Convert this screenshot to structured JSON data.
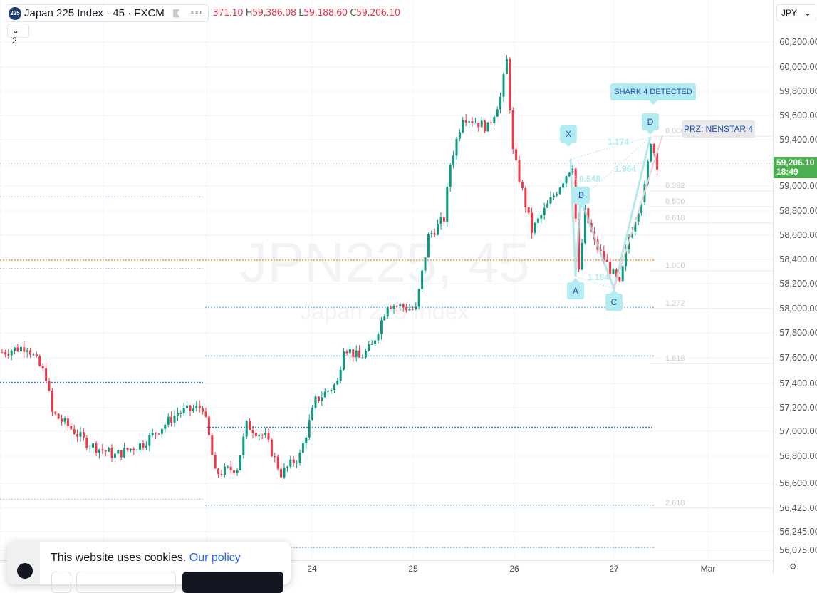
{
  "symbol": {
    "badge": "225",
    "title": "Japan 225 Index · 45 · FXCM",
    "more": "∘∘∘"
  },
  "ohlc": {
    "o_partial": "371.10",
    "h_key": "H",
    "h": "59,386.08",
    "l_key": "L",
    "l": "59,188.60",
    "c_key": "C",
    "c": "59,206.10"
  },
  "indicators_count": "2",
  "watermark": {
    "line1": "JPN225, 45",
    "line2": "Japan 225 Index"
  },
  "currency": "JPY",
  "price_labels": [
    "60,200.00",
    "60,000.00",
    "59,800.00",
    "59,600.00",
    "59,400.00",
    "59,206.10",
    "59,000.00",
    "58,800.00",
    "58,600.00",
    "58,400.00",
    "58,200.00",
    "58,000.00",
    "57,800.00",
    "57,600.00",
    "57,400.00",
    "57,200.00",
    "57,000.00",
    "56,800.00",
    "56,600.00",
    "56,425.00",
    "56,245.00",
    "56,075.00"
  ],
  "last_price": {
    "price": "59,206.10",
    "countdown": "18:49",
    "color": "#4caf50"
  },
  "time_labels": [
    "24",
    "25",
    "26",
    "27",
    "Mar"
  ],
  "pattern": {
    "title": "SHARK 4 DETECTED",
    "prz": "PRZ: NENSTAR 4",
    "points": [
      "X",
      "A",
      "B",
      "C",
      "D"
    ],
    "ratios": [
      "1.174",
      "0.548",
      "1.964",
      "1.184"
    ],
    "fib_levels": [
      "0.000",
      "0.382",
      "0.500",
      "0.618",
      "1.000",
      "1.272",
      "1.618",
      "2.618"
    ]
  },
  "colors": {
    "up": "#089981",
    "down": "#f23645",
    "pattern": "#b2ebf2",
    "level_blue": "#90c2f0",
    "level_orange": "#f5b45a"
  },
  "price_path": [
    [
      0,
      57650
    ],
    [
      8,
      57700
    ],
    [
      14,
      57450
    ],
    [
      16,
      57150
    ],
    [
      23,
      57000
    ],
    [
      27,
      56900
    ],
    [
      36,
      56800
    ],
    [
      45,
      56900
    ],
    [
      56,
      57150
    ],
    [
      64,
      57200
    ],
    [
      66,
      56950
    ],
    [
      68,
      56650
    ],
    [
      75,
      56700
    ],
    [
      78,
      57050
    ],
    [
      84,
      56950
    ],
    [
      89,
      56650
    ],
    [
      95,
      56800
    ],
    [
      100,
      57250
    ],
    [
      107,
      57400
    ],
    [
      109,
      57700
    ],
    [
      114,
      57600
    ],
    [
      118,
      57700
    ],
    [
      123,
      58050
    ],
    [
      132,
      58000
    ],
    [
      136,
      58600
    ],
    [
      141,
      58750
    ],
    [
      143,
      59200
    ],
    [
      147,
      59600
    ],
    [
      155,
      59500
    ],
    [
      159,
      59750
    ],
    [
      161,
      60050
    ],
    [
      163,
      59300
    ],
    [
      169,
      58650
    ],
    [
      175,
      58900
    ],
    [
      182,
      59200
    ],
    [
      184,
      58300
    ],
    [
      186,
      58800
    ],
    [
      189,
      58550
    ],
    [
      197,
      58200
    ],
    [
      200,
      58600
    ],
    [
      205,
      59000
    ],
    [
      207,
      59400
    ],
    [
      209,
      59200
    ]
  ],
  "cookie": {
    "text": "This website uses cookies.",
    "link": "Our policy"
  }
}
